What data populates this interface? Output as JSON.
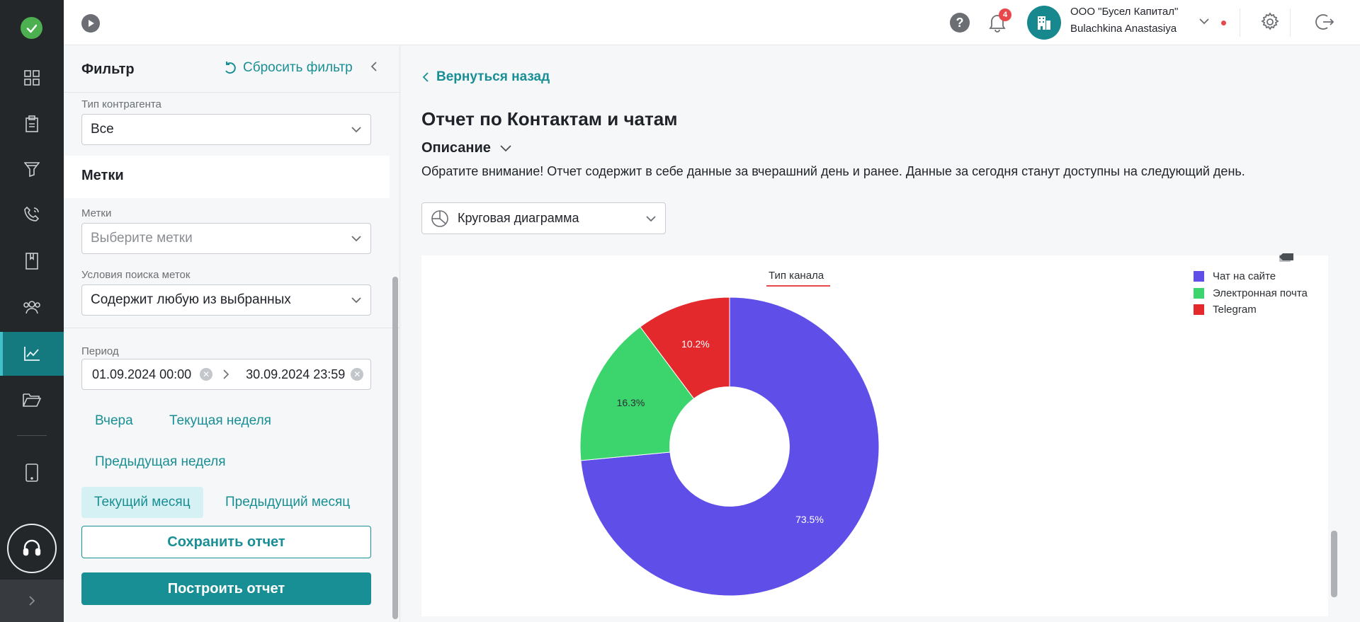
{
  "rail": {
    "items": [
      "dashboard",
      "documents",
      "funnel",
      "calls",
      "book",
      "contacts",
      "reports",
      "folder",
      "tablet"
    ]
  },
  "topbar": {
    "notifications_count": "4",
    "org_name": "ООО \"Бусел Капитал\"",
    "user_name": "Bulachkina Anastasiya"
  },
  "filter": {
    "title": "Фильтр",
    "reset_label": "Сбросить фильтр",
    "counterparty_type_label": "Тип контрагента",
    "counterparty_type_value": "Все",
    "tags_section_title": "Метки",
    "tags_label": "Метки",
    "tags_placeholder": "Выберите метки",
    "tag_conditions_label": "Условия поиска меток",
    "tag_conditions_value": "Содержит любую из выбранных",
    "period_label": "Период",
    "date_from": "01.09.2024 00:00",
    "date_to": "30.09.2024 23:59",
    "quick_periods": {
      "yesterday": "Вчера",
      "current_week": "Текущая неделя",
      "previous_week": "Предыдущая неделя",
      "current_month": "Текущий месяц",
      "previous_month": "Предыдущий месяц"
    },
    "save_button": "Сохранить отчет",
    "build_button": "Построить отчет"
  },
  "main": {
    "back_label": "Вернуться назад",
    "title": "Отчет по Контактам и чатам",
    "description_title": "Описание",
    "description_text": "Обратите внимание! Отчет содержит в себе данные за вчерашний день и ранее. Данные за сегодня станут доступны на следующий день.",
    "chart_type_value": "Круговая диаграмма"
  },
  "colors": {
    "accent": "#188f95",
    "slice_site_chat": "#5f4fe8",
    "slice_email": "#3bd46d",
    "slice_telegram": "#e3292c"
  },
  "chart_data": {
    "type": "pie",
    "title": "Тип канала",
    "hole": 0.4,
    "series": [
      {
        "name": "Чат на сайте",
        "value": 73.5,
        "label": "73.5%",
        "color": "#5f4fe8"
      },
      {
        "name": "Электронная почта",
        "value": 16.3,
        "label": "16.3%",
        "color": "#3bd46d"
      },
      {
        "name": "Telegram",
        "value": 10.2,
        "label": "10.2%",
        "color": "#e3292c"
      }
    ],
    "legend_position": "top-right"
  }
}
